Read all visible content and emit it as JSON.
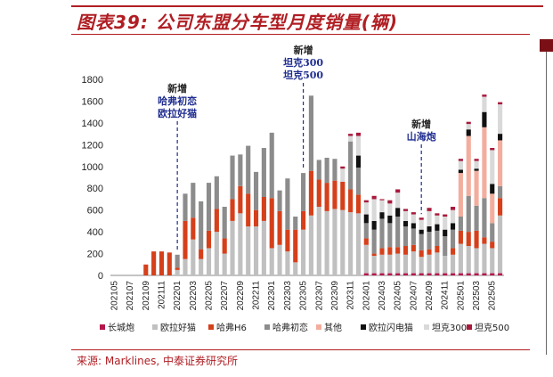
{
  "title": "图表39: 公司东盟分车型月度销量(辆)",
  "source": "来源: Marklines, 中泰证券研究所",
  "chart_data": {
    "type": "bar",
    "stacked": true,
    "ylim": [
      0,
      1800
    ],
    "yticks": [
      0,
      200,
      400,
      600,
      800,
      1000,
      1200,
      1400,
      1600,
      1800
    ],
    "x_tick_labels": [
      "202105",
      "202107",
      "202109",
      "202111",
      "202201",
      "202203",
      "202205",
      "202207",
      "202209",
      "202211",
      "202301",
      "202303",
      "202305",
      "202307",
      "202309",
      "202311",
      "202401",
      "202403",
      "202405",
      "202407",
      "202409",
      "202411",
      "202501",
      "202503",
      "202505"
    ],
    "categories": [
      "202105",
      "202106",
      "202107",
      "202108",
      "202109",
      "202110",
      "202111",
      "202112",
      "202201",
      "202202",
      "202203",
      "202204",
      "202205",
      "202206",
      "202207",
      "202208",
      "202209",
      "202210",
      "202211",
      "202212",
      "202301",
      "202302",
      "202303",
      "202304",
      "202305",
      "202306",
      "202307",
      "202308",
      "202309",
      "202310",
      "202311",
      "202312",
      "202401",
      "202402",
      "202403",
      "202404",
      "202405",
      "202406",
      "202407",
      "202408",
      "202409",
      "202410",
      "202411",
      "202412",
      "202501",
      "202502",
      "202503",
      "202504",
      "202505",
      "202506"
    ],
    "colors": {
      "长城炮": "#b5164a",
      "欧拉好猫": "#c0c0c0",
      "哈弗H6": "#d5401b",
      "哈弗初恋": "#8c8c8c",
      "其他": "#f3ad9e",
      "欧拉闪电猫": "#111111",
      "坦克300": "#d9d9d9",
      "坦克500": "#a8193b"
    },
    "series": [
      {
        "name": "长城炮",
        "values": [
          0,
          0,
          0,
          0,
          0,
          0,
          0,
          0,
          0,
          0,
          0,
          0,
          0,
          0,
          0,
          0,
          0,
          0,
          0,
          0,
          0,
          0,
          0,
          0,
          0,
          0,
          0,
          0,
          0,
          0,
          0,
          0,
          20,
          20,
          20,
          20,
          20,
          20,
          20,
          20,
          20,
          20,
          20,
          20,
          20,
          20,
          20,
          20,
          20,
          20
        ]
      },
      {
        "name": "欧拉好猫",
        "values": [
          0,
          0,
          0,
          0,
          0,
          0,
          0,
          0,
          50,
          150,
          330,
          150,
          250,
          400,
          200,
          500,
          570,
          450,
          450,
          500,
          250,
          280,
          220,
          120,
          420,
          550,
          630,
          590,
          610,
          600,
          580,
          570,
          260,
          160,
          170,
          170,
          180,
          170,
          200,
          150,
          170,
          190,
          160,
          170,
          270,
          250,
          230,
          270,
          230,
          530
        ]
      },
      {
        "name": "哈弗H6",
        "values": [
          0,
          0,
          0,
          0,
          100,
          220,
          220,
          210,
          20,
          350,
          200,
          90,
          160,
          210,
          140,
          200,
          250,
          300,
          150,
          220,
          460,
          310,
          200,
          300,
          170,
          410,
          250,
          260,
          260,
          260,
          210,
          170,
          60,
          20,
          60,
          70,
          60,
          80,
          60,
          60,
          50,
          60,
          0,
          60,
          120,
          130,
          160,
          60,
          60,
          160
        ]
      },
      {
        "name": "哈弗初恋",
        "values": [
          0,
          0,
          0,
          0,
          0,
          0,
          0,
          0,
          120,
          250,
          320,
          440,
          440,
          300,
          290,
          400,
          290,
          440,
          350,
          450,
          600,
          190,
          470,
          120,
          350,
          690,
          180,
          230,
          200,
          0,
          440,
          250,
          140,
          220,
          270,
          220,
          280,
          180,
          150,
          150,
          160,
          140,
          180,
          170,
          130,
          330,
          230,
          360,
          170,
          110
        ]
      },
      {
        "name": "其他",
        "values": [
          0,
          0,
          0,
          0,
          0,
          0,
          0,
          0,
          0,
          0,
          0,
          0,
          0,
          0,
          0,
          0,
          0,
          0,
          0,
          0,
          0,
          0,
          0,
          0,
          0,
          0,
          0,
          0,
          0,
          0,
          0,
          0,
          0,
          0,
          0,
          0,
          0,
          0,
          0,
          0,
          0,
          0,
          0,
          0,
          400,
          550,
          320,
          650,
          270,
          420
        ]
      },
      {
        "name": "欧拉闪电猫",
        "values": [
          0,
          0,
          0,
          0,
          0,
          0,
          0,
          0,
          0,
          0,
          0,
          0,
          0,
          0,
          0,
          0,
          0,
          0,
          0,
          0,
          0,
          0,
          0,
          0,
          0,
          0,
          0,
          0,
          0,
          0,
          0,
          110,
          80,
          80,
          60,
          70,
          80,
          50,
          50,
          40,
          50,
          60,
          60,
          60,
          30,
          60,
          20,
          140,
          90,
          60
        ]
      },
      {
        "name": "坦克300",
        "values": [
          0,
          0,
          0,
          0,
          0,
          0,
          0,
          0,
          0,
          0,
          0,
          0,
          0,
          0,
          0,
          0,
          0,
          0,
          0,
          0,
          0,
          0,
          0,
          0,
          0,
          0,
          0,
          0,
          0,
          120,
          50,
          180,
          110,
          200,
          110,
          110,
          140,
          90,
          80,
          90,
          140,
          80,
          120,
          120,
          80,
          50,
          70,
          140,
          310,
          270
        ]
      },
      {
        "name": "坦克500",
        "values": [
          0,
          0,
          0,
          0,
          0,
          0,
          0,
          0,
          0,
          0,
          0,
          0,
          0,
          0,
          0,
          0,
          0,
          0,
          0,
          0,
          0,
          0,
          0,
          0,
          0,
          0,
          0,
          0,
          0,
          20,
          20,
          30,
          20,
          30,
          10,
          30,
          30,
          20,
          20,
          20,
          30,
          20,
          20,
          30,
          20,
          20,
          20,
          20,
          20,
          20
        ]
      }
    ],
    "legend": [
      "长城炮",
      "欧拉好猫",
      "哈弗H6",
      "哈弗初恋",
      "其他",
      "欧拉闪电猫",
      "坦克300",
      "坦克500"
    ],
    "legend_position": "bottom",
    "annotations": [
      {
        "category": "202201",
        "head": "新增",
        "lines": [
          "哈弗初恋",
          "欧拉好猫"
        ]
      },
      {
        "category": "202305",
        "head": "新增",
        "lines": [
          "坦克300",
          "坦克500"
        ]
      },
      {
        "category": "202408",
        "head": "新增",
        "lines": [
          "山海炮"
        ]
      }
    ]
  }
}
